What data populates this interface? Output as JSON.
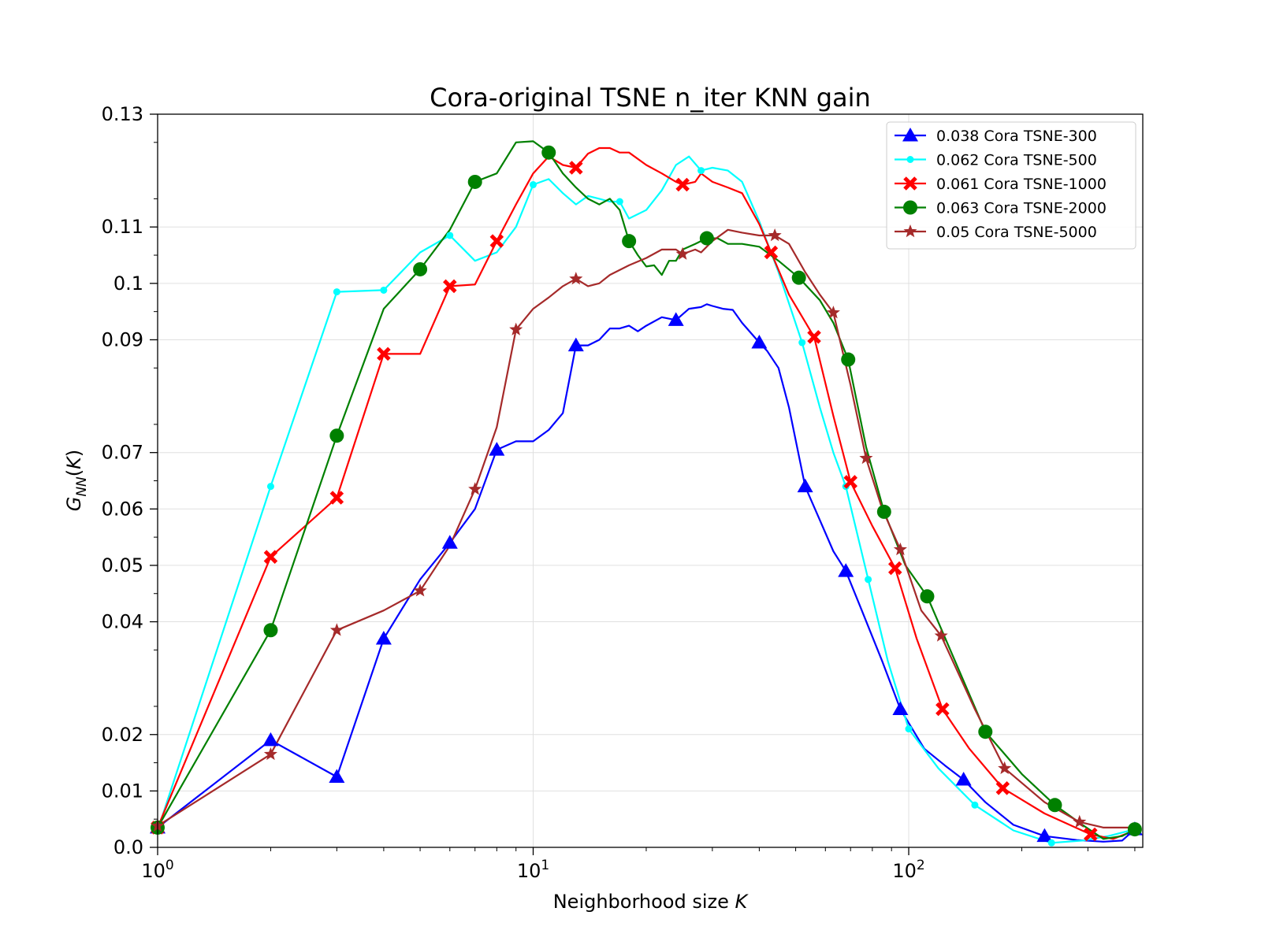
{
  "chart_data": {
    "type": "line",
    "title": "Cora-original TSNE n_iter KNN gain",
    "xlabel": "Neighborhood size K",
    "xlabel_text": "Neighborhood size ",
    "xlabel_var": "K",
    "ylabel": "G_NN(K)",
    "x_scale": "log",
    "xlim": [
      1,
      420
    ],
    "ylim": [
      0,
      0.13
    ],
    "x_ticks": [
      1,
      10,
      100
    ],
    "x_tick_labels": [
      {
        "base": "10",
        "exp": "0"
      },
      {
        "base": "10",
        "exp": "1"
      },
      {
        "base": "10",
        "exp": "2"
      }
    ],
    "y_ticks": [
      0,
      0.01,
      0.02,
      0.04,
      0.05,
      0.06,
      0.07,
      0.09,
      0.1,
      0.11,
      0.13
    ],
    "y_tick_labels": [
      "0.0",
      "0.01",
      "0.02",
      "0.04",
      "0.05",
      "0.06",
      "0.07",
      "0.09",
      "0.1",
      "0.11",
      "0.13"
    ],
    "grid": true,
    "legend_position": "top-right",
    "series": [
      {
        "name": "0.038 Cora TSNE-300",
        "color": "#0000ff",
        "marker": "triangle",
        "markers_at": [
          1,
          2,
          3,
          4,
          6,
          8,
          13,
          24,
          40,
          53,
          68,
          95,
          140,
          230,
          400
        ],
        "points": [
          [
            1,
            0.0035
          ],
          [
            2,
            0.019
          ],
          [
            3,
            0.0125
          ],
          [
            4,
            0.037
          ],
          [
            5,
            0.0475
          ],
          [
            6,
            0.054
          ],
          [
            7,
            0.06
          ],
          [
            8,
            0.0705
          ],
          [
            9,
            0.072
          ],
          [
            10,
            0.072
          ],
          [
            11,
            0.074
          ],
          [
            12,
            0.077
          ],
          [
            13,
            0.089
          ],
          [
            14,
            0.089
          ],
          [
            15,
            0.09
          ],
          [
            16,
            0.092
          ],
          [
            17,
            0.092
          ],
          [
            18,
            0.0925
          ],
          [
            19,
            0.0915
          ],
          [
            20,
            0.0925
          ],
          [
            22,
            0.094
          ],
          [
            24,
            0.0935
          ],
          [
            26,
            0.0955
          ],
          [
            28,
            0.0958
          ],
          [
            29,
            0.0963
          ],
          [
            30,
            0.096
          ],
          [
            32,
            0.0955
          ],
          [
            34,
            0.0953
          ],
          [
            36,
            0.093
          ],
          [
            40,
            0.0895
          ],
          [
            42,
            0.088
          ],
          [
            45,
            0.085
          ],
          [
            48,
            0.078
          ],
          [
            53,
            0.064
          ],
          [
            58,
            0.058
          ],
          [
            63,
            0.0525
          ],
          [
            68,
            0.049
          ],
          [
            75,
            0.042
          ],
          [
            85,
            0.033
          ],
          [
            95,
            0.0245
          ],
          [
            110,
            0.0175
          ],
          [
            125,
            0.0145
          ],
          [
            140,
            0.012
          ],
          [
            160,
            0.008
          ],
          [
            190,
            0.004
          ],
          [
            230,
            0.002
          ],
          [
            280,
            0.0013
          ],
          [
            330,
            0.001
          ],
          [
            370,
            0.0012
          ],
          [
            400,
            0.0032
          ]
        ]
      },
      {
        "name": "0.062 Cora TSNE-500",
        "color": "#00ffff",
        "marker": "dot",
        "markers_at": [
          1,
          2,
          3,
          4,
          6,
          10,
          17,
          28,
          52,
          68,
          78,
          100,
          150,
          240,
          400
        ],
        "points": [
          [
            1,
            0.003
          ],
          [
            2,
            0.064
          ],
          [
            3,
            0.0985
          ],
          [
            4,
            0.0988
          ],
          [
            5,
            0.1055
          ],
          [
            6,
            0.1085
          ],
          [
            7,
            0.104
          ],
          [
            8,
            0.1055
          ],
          [
            9,
            0.11
          ],
          [
            10,
            0.1175
          ],
          [
            11,
            0.1185
          ],
          [
            12,
            0.116
          ],
          [
            13,
            0.114
          ],
          [
            14,
            0.1155
          ],
          [
            15,
            0.115
          ],
          [
            16,
            0.1145
          ],
          [
            17,
            0.1145
          ],
          [
            18,
            0.1115
          ],
          [
            20,
            0.113
          ],
          [
            22,
            0.1165
          ],
          [
            24,
            0.121
          ],
          [
            26,
            0.1225
          ],
          [
            28,
            0.12
          ],
          [
            30,
            0.1205
          ],
          [
            33,
            0.12
          ],
          [
            36,
            0.118
          ],
          [
            40,
            0.111
          ],
          [
            45,
            0.102
          ],
          [
            52,
            0.0895
          ],
          [
            58,
            0.078
          ],
          [
            63,
            0.07
          ],
          [
            68,
            0.064
          ],
          [
            78,
            0.0475
          ],
          [
            88,
            0.033
          ],
          [
            100,
            0.021
          ],
          [
            120,
            0.014
          ],
          [
            150,
            0.0075
          ],
          [
            190,
            0.003
          ],
          [
            240,
            0.0008
          ],
          [
            290,
            0.0012
          ],
          [
            340,
            0.002
          ],
          [
            400,
            0.0032
          ]
        ]
      },
      {
        "name": "0.061 Cora TSNE-1000",
        "color": "#ff0000",
        "marker": "x",
        "markers_at": [
          1,
          2,
          3,
          4,
          6,
          8,
          13,
          25,
          43,
          56,
          70,
          92,
          123,
          178,
          305
        ],
        "points": [
          [
            1,
            0.0035
          ],
          [
            2,
            0.0515
          ],
          [
            3,
            0.062
          ],
          [
            4,
            0.0875
          ],
          [
            5,
            0.0875
          ],
          [
            6,
            0.0995
          ],
          [
            7,
            0.0998
          ],
          [
            8,
            0.1075
          ],
          [
            9,
            0.114
          ],
          [
            10,
            0.1195
          ],
          [
            11,
            0.1225
          ],
          [
            12,
            0.121
          ],
          [
            13,
            0.1205
          ],
          [
            14,
            0.123
          ],
          [
            15,
            0.124
          ],
          [
            16,
            0.124
          ],
          [
            17,
            0.1232
          ],
          [
            18,
            0.1232
          ],
          [
            20,
            0.121
          ],
          [
            22,
            0.1195
          ],
          [
            24,
            0.118
          ],
          [
            25,
            0.1175
          ],
          [
            27,
            0.118
          ],
          [
            28,
            0.1195
          ],
          [
            30,
            0.118
          ],
          [
            33,
            0.117
          ],
          [
            36,
            0.116
          ],
          [
            40,
            0.1105
          ],
          [
            43,
            0.1055
          ],
          [
            48,
            0.098
          ],
          [
            56,
            0.0905
          ],
          [
            63,
            0.0765
          ],
          [
            70,
            0.0648
          ],
          [
            80,
            0.057
          ],
          [
            92,
            0.0495
          ],
          [
            105,
            0.037
          ],
          [
            123,
            0.0245
          ],
          [
            145,
            0.0175
          ],
          [
            178,
            0.0105
          ],
          [
            230,
            0.006
          ],
          [
            305,
            0.0023
          ],
          [
            350,
            0.0015
          ],
          [
            400,
            0.003
          ]
        ]
      },
      {
        "name": "0.063 Cora TSNE-2000",
        "color": "#008000",
        "marker": "circle",
        "markers_at": [
          1,
          2,
          3,
          5,
          7,
          11,
          18,
          29,
          51,
          69,
          86,
          112,
          160,
          245,
          400
        ],
        "points": [
          [
            1,
            0.0035
          ],
          [
            2,
            0.0385
          ],
          [
            3,
            0.073
          ],
          [
            4,
            0.0955
          ],
          [
            5,
            0.1025
          ],
          [
            6,
            0.1095
          ],
          [
            7,
            0.118
          ],
          [
            8,
            0.1195
          ],
          [
            9,
            0.125
          ],
          [
            10,
            0.1252
          ],
          [
            11,
            0.1232
          ],
          [
            12,
            0.1195
          ],
          [
            13,
            0.117
          ],
          [
            14,
            0.115
          ],
          [
            15,
            0.114
          ],
          [
            16,
            0.115
          ],
          [
            17,
            0.113
          ],
          [
            18,
            0.1075
          ],
          [
            19,
            0.105
          ],
          [
            20,
            0.103
          ],
          [
            21,
            0.1032
          ],
          [
            22,
            0.1015
          ],
          [
            23,
            0.104
          ],
          [
            24,
            0.104
          ],
          [
            25,
            0.106
          ],
          [
            27,
            0.107
          ],
          [
            29,
            0.108
          ],
          [
            31,
            0.108
          ],
          [
            33,
            0.107
          ],
          [
            36,
            0.107
          ],
          [
            40,
            0.1065
          ],
          [
            45,
            0.104
          ],
          [
            51,
            0.101
          ],
          [
            58,
            0.097
          ],
          [
            63,
            0.093
          ],
          [
            69,
            0.0865
          ],
          [
            77,
            0.071
          ],
          [
            86,
            0.0595
          ],
          [
            98,
            0.05
          ],
          [
            112,
            0.0445
          ],
          [
            130,
            0.0345
          ],
          [
            160,
            0.0205
          ],
          [
            200,
            0.013
          ],
          [
            245,
            0.0075
          ],
          [
            290,
            0.004
          ],
          [
            330,
            0.0015
          ],
          [
            370,
            0.002
          ],
          [
            400,
            0.0032
          ]
        ]
      },
      {
        "name": "0.05 Cora TSNE-5000",
        "color": "#a52a2a",
        "marker": "star",
        "markers_at": [
          1,
          2,
          3,
          5,
          7,
          9,
          13,
          25,
          44,
          63,
          77,
          95,
          122,
          180,
          285
        ],
        "points": [
          [
            1,
            0.0038
          ],
          [
            2,
            0.0165
          ],
          [
            3,
            0.0385
          ],
          [
            4,
            0.042
          ],
          [
            5,
            0.0455
          ],
          [
            6,
            0.0535
          ],
          [
            7,
            0.0635
          ],
          [
            8,
            0.0745
          ],
          [
            9,
            0.0918
          ],
          [
            10,
            0.0955
          ],
          [
            11,
            0.0975
          ],
          [
            12,
            0.0995
          ],
          [
            13,
            0.1008
          ],
          [
            14,
            0.0995
          ],
          [
            15,
            0.1
          ],
          [
            16,
            0.1015
          ],
          [
            18,
            0.1032
          ],
          [
            20,
            0.1045
          ],
          [
            22,
            0.106
          ],
          [
            24,
            0.106
          ],
          [
            25,
            0.1052
          ],
          [
            27,
            0.106
          ],
          [
            28,
            0.1055
          ],
          [
            30,
            0.1075
          ],
          [
            33,
            0.1095
          ],
          [
            36,
            0.109
          ],
          [
            40,
            0.1085
          ],
          [
            44,
            0.1085
          ],
          [
            48,
            0.107
          ],
          [
            53,
            0.102
          ],
          [
            58,
            0.098
          ],
          [
            63,
            0.0948
          ],
          [
            70,
            0.082
          ],
          [
            77,
            0.069
          ],
          [
            85,
            0.06
          ],
          [
            95,
            0.0528
          ],
          [
            108,
            0.042
          ],
          [
            122,
            0.0375
          ],
          [
            150,
            0.0245
          ],
          [
            180,
            0.014
          ],
          [
            230,
            0.008
          ],
          [
            285,
            0.0045
          ],
          [
            330,
            0.0035
          ],
          [
            370,
            0.0035
          ],
          [
            400,
            0.0035
          ]
        ]
      }
    ]
  }
}
